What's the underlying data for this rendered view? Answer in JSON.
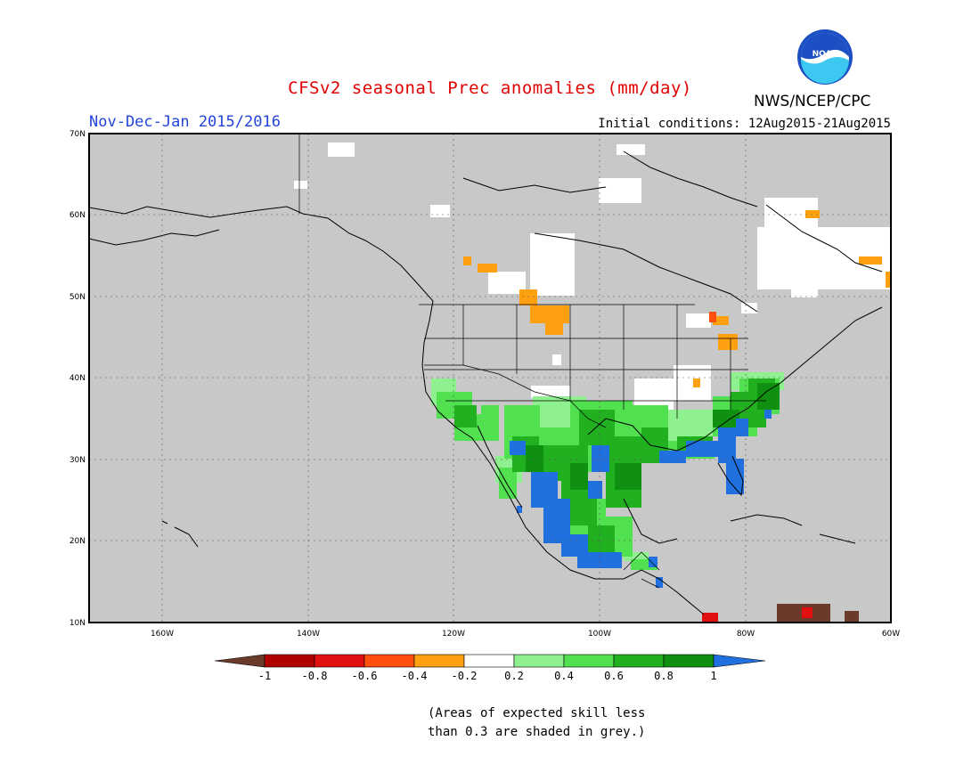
{
  "title": "CFSv2 seasonal Prec anomalies (mm/day)",
  "organization": "NWS/NCEP/CPC",
  "logo_text": "NOAA",
  "period": "Nov-Dec-Jan 2015/2016",
  "initial_conditions": "Initial conditions: 12Aug2015-21Aug2015",
  "lat_labels": [
    "70N",
    "60N",
    "50N",
    "40N",
    "30N",
    "20N",
    "10N"
  ],
  "lon_labels": [
    "160W",
    "140W",
    "120W",
    "100W",
    "80W",
    "60W"
  ],
  "legend": {
    "labels": [
      "-1",
      "-0.8",
      "-0.6",
      "-0.4",
      "-0.2",
      "0.2",
      "0.4",
      "0.6",
      "0.8",
      "1"
    ],
    "colors": [
      "#6b3b2a",
      "#b00000",
      "#e01010",
      "#ff5010",
      "#ffa010",
      "#ffffff",
      "#8ef08e",
      "#50e050",
      "#20b020",
      "#109010",
      "#2070e0"
    ]
  },
  "note_lines": [
    "(Areas of expected skill less",
    "than 0.3 are shaded in grey.)"
  ],
  "colors": {
    "grey": "#c8c8c8",
    "title": "#e00000",
    "period": "#2244dd"
  }
}
